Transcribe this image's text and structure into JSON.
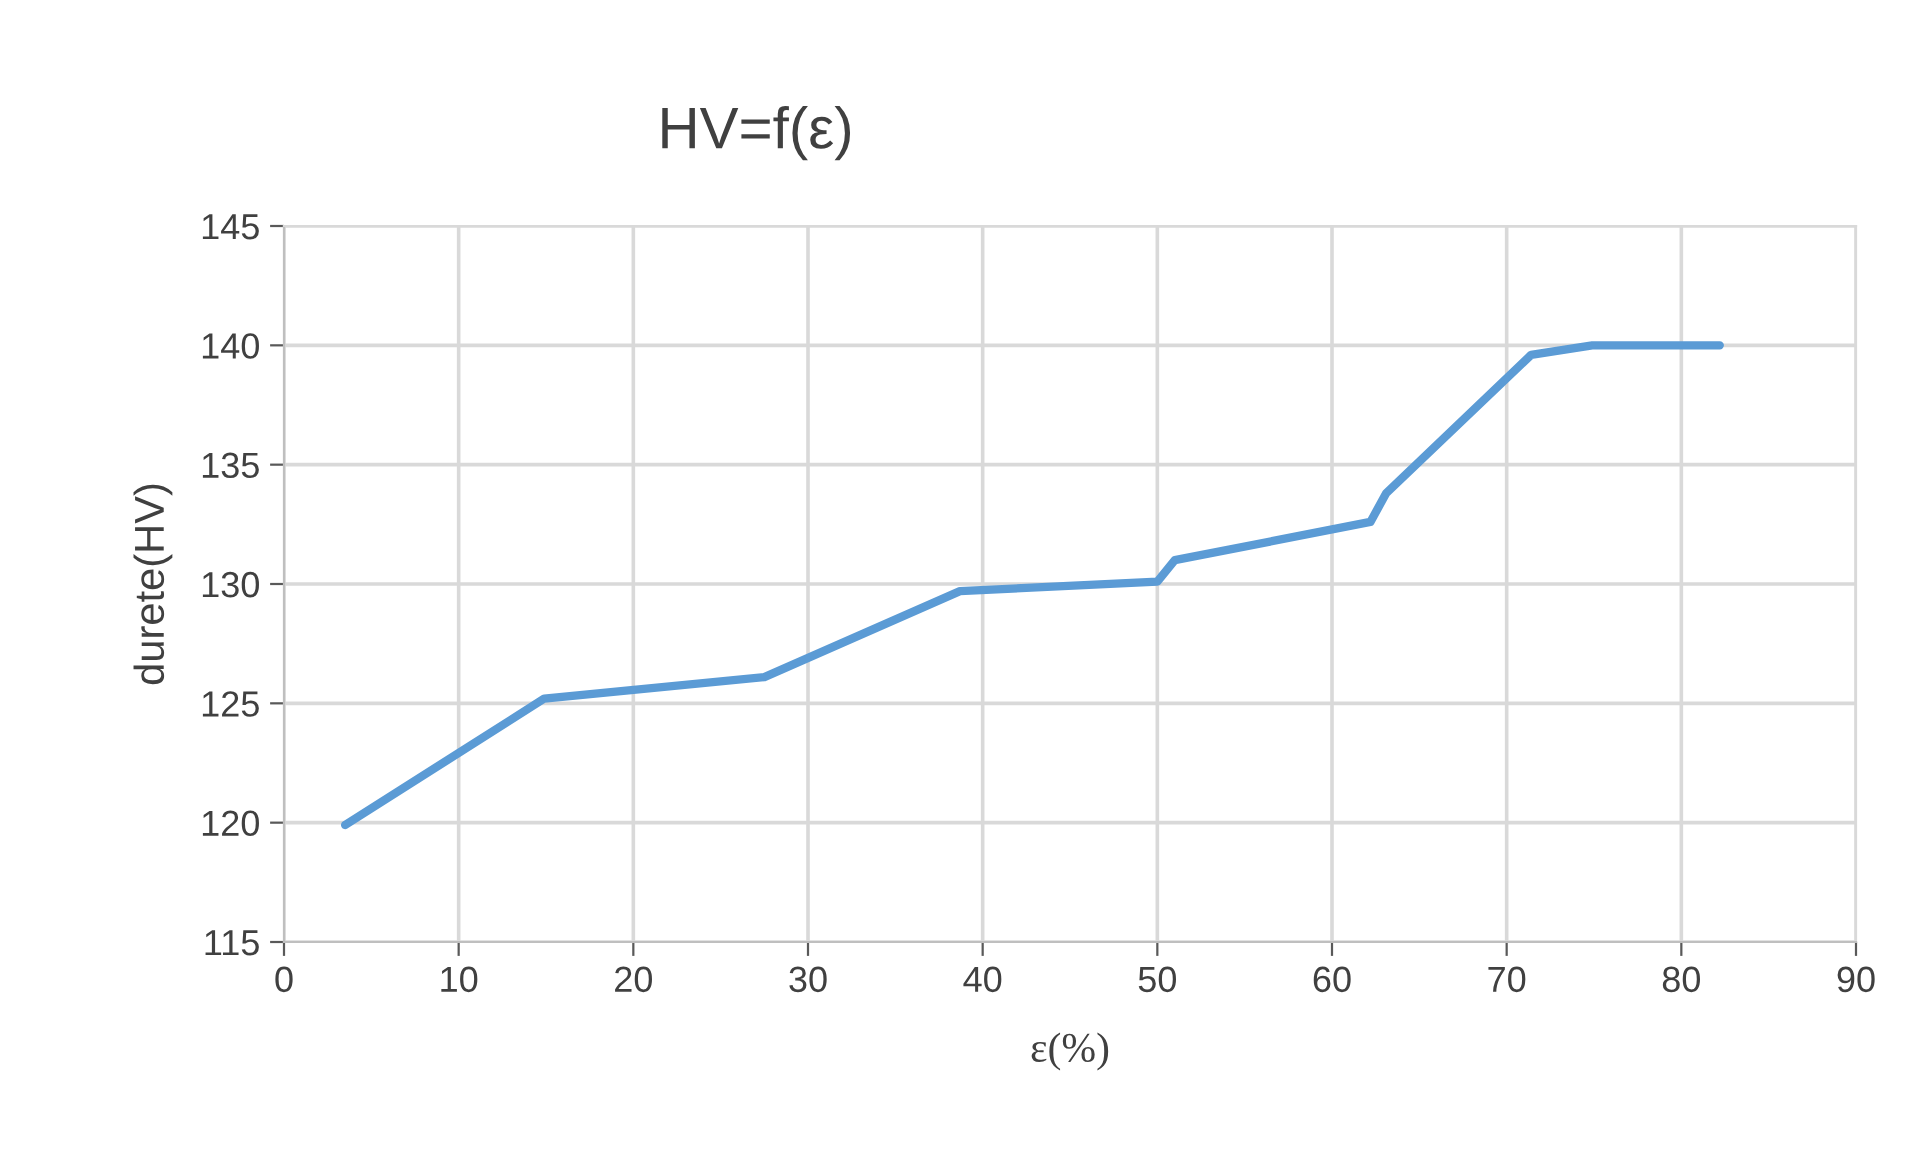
{
  "chart_data": {
    "type": "line",
    "title": "HV=f(ε)",
    "xlabel": "ε(%)",
    "ylabel": "durete(HV)",
    "x": [
      3.5,
      14.9,
      27.5,
      38.7,
      50,
      51,
      62.2,
      63.1,
      71.4,
      74.9,
      82.2
    ],
    "series": [
      {
        "color": "#5b9bd5",
        "values": [
          119.9,
          125.2,
          126.1,
          129.7,
          130.1,
          131,
          132.6,
          133.8,
          139.6,
          140,
          140
        ]
      }
    ],
    "xlim": [
      0,
      90
    ],
    "xticks": [
      0,
      10,
      20,
      30,
      40,
      50,
      60,
      70,
      80,
      90
    ],
    "ylim": [
      115,
      145
    ],
    "yticks": [
      115,
      120,
      125,
      130,
      135,
      140,
      145
    ],
    "grid": true,
    "marker": "none",
    "line_style": "solid"
  }
}
